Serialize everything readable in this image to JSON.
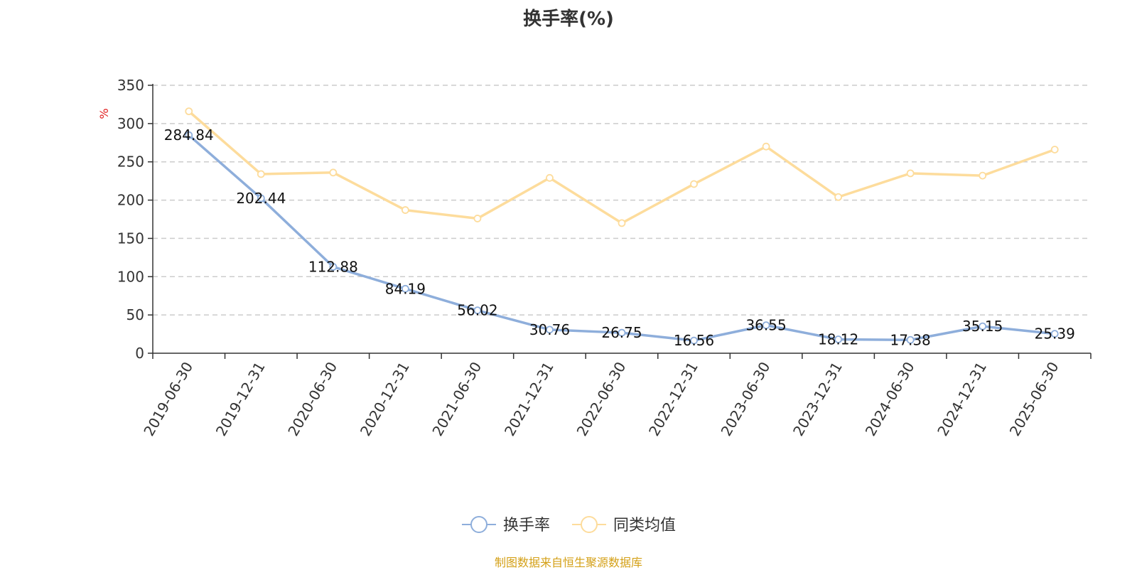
{
  "chart_data": {
    "type": "line",
    "title": "换手率(%)",
    "ylabel": "%",
    "xlabel": "",
    "ylim": [
      0,
      350
    ],
    "yticks": [
      0,
      50,
      100,
      150,
      200,
      250,
      300,
      350
    ],
    "grid": true,
    "legend_position": "bottom-center",
    "categories": [
      "2019-06-30",
      "2019-12-31",
      "2020-06-30",
      "2020-12-31",
      "2021-06-30",
      "2021-12-31",
      "2022-06-30",
      "2022-12-31",
      "2023-06-30",
      "2023-12-31",
      "2024-06-30",
      "2024-12-31",
      "2025-06-30"
    ],
    "series": [
      {
        "name": "换手率",
        "color": "#8eaedb",
        "show_labels": true,
        "values": [
          284.84,
          202.44,
          112.88,
          84.19,
          56.02,
          30.76,
          26.75,
          16.56,
          36.55,
          18.12,
          17.38,
          35.15,
          25.39
        ]
      },
      {
        "name": "同类均值",
        "color": "#fddc9c",
        "show_labels": false,
        "values": [
          316,
          234,
          236,
          187,
          176,
          229,
          170,
          221,
          270,
          204,
          235,
          232,
          266
        ]
      }
    ]
  },
  "source_note": "制图数据来自恒生聚源数据库",
  "colors": {
    "axis": "#333333",
    "grid": "#cccccc",
    "unit": "#e02020",
    "source": "#d4a017"
  }
}
